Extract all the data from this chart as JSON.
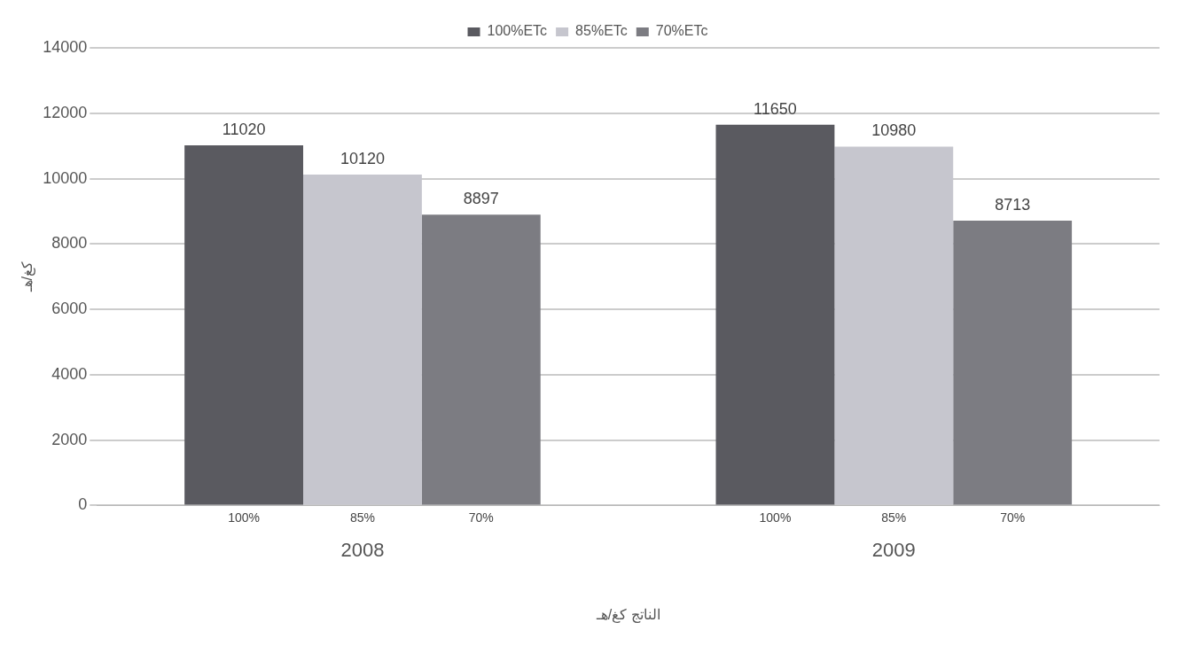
{
  "chart_data": {
    "type": "bar",
    "ylabel": "كغ/هـ",
    "xlabel": "الناتج كغ/هـ",
    "categories": [
      "2008",
      "2009"
    ],
    "series": [
      {
        "name": "100%ETc",
        "color": "#5a5a60",
        "values": [
          11020,
          11650
        ]
      },
      {
        "name": "85%ETc",
        "color": "#c6c6ce",
        "values": [
          10120,
          10980
        ]
      },
      {
        "name": "70%ETc",
        "color": "#7c7c82",
        "values": [
          8897,
          8713
        ]
      }
    ],
    "ylim": [
      0,
      14000
    ],
    "yticks": [
      0,
      2000,
      4000,
      6000,
      8000,
      10000,
      12000,
      14000
    ],
    "grid": "y",
    "legend": "top",
    "data_labels": true,
    "annotations": [
      "100%",
      "85%",
      "70%",
      "100%",
      "85%",
      "70%"
    ]
  }
}
